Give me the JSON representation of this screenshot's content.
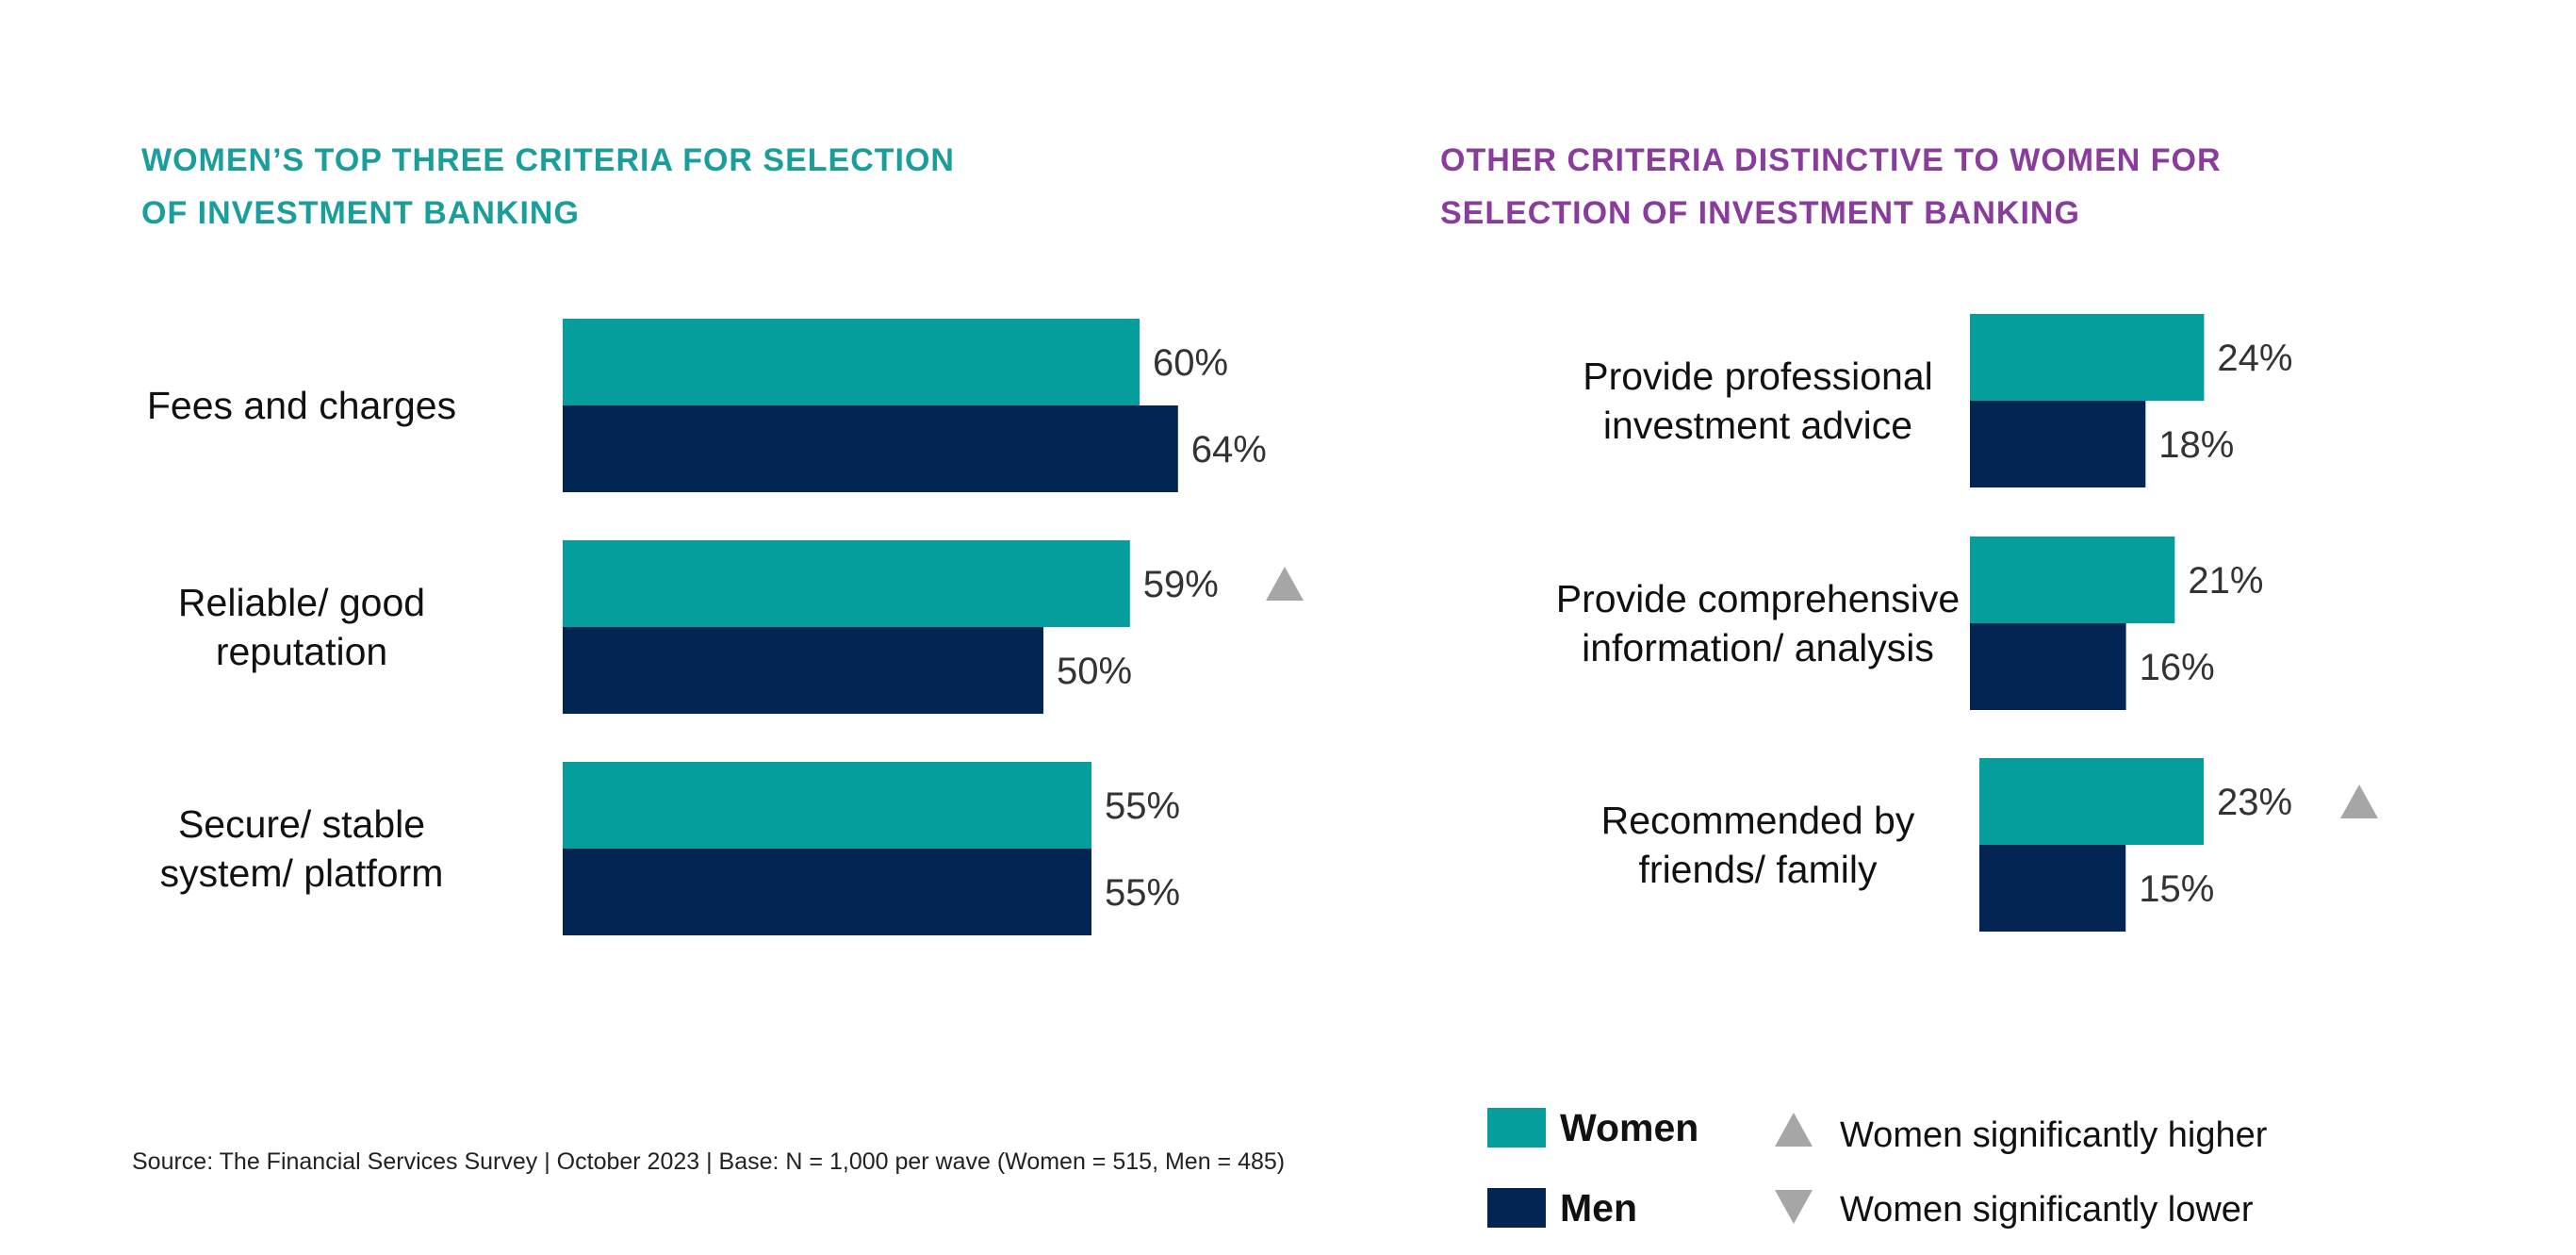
{
  "colors": {
    "women": "#069e9c",
    "men": "#032553",
    "title_left": "#1a9e9b",
    "title_right": "#8a3c9c",
    "marker": "#a6a6a6"
  },
  "chart_data": [
    {
      "type": "bar",
      "orientation": "horizontal",
      "title_lines": [
        "WOMEN’S TOP THREE CRITERIA FOR SELECTION",
        "OF INVESTMENT BANKING"
      ],
      "categories": [
        {
          "lines": [
            "Fees and charges"
          ]
        },
        {
          "lines": [
            "Reliable/ good",
            "reputation"
          ]
        },
        {
          "lines": [
            "Secure/ stable",
            "system/ platform"
          ]
        }
      ],
      "series": [
        {
          "name": "Women",
          "values": [
            60,
            59,
            55
          ],
          "labels": [
            "60%",
            "59%",
            "55%"
          ]
        },
        {
          "name": "Men",
          "values": [
            64,
            50,
            55
          ],
          "labels": [
            "64%",
            "50%",
            "55%"
          ]
        }
      ],
      "significance": [
        "",
        "higher",
        ""
      ],
      "unit": "%"
    },
    {
      "type": "bar",
      "orientation": "horizontal",
      "title_lines": [
        "OTHER CRITERIA DISTINCTIVE TO WOMEN FOR",
        "SELECTION OF INVESTMENT BANKING"
      ],
      "categories": [
        {
          "lines": [
            "Provide professional",
            "investment advice"
          ]
        },
        {
          "lines": [
            "Provide comprehensive",
            "information/ analysis"
          ]
        },
        {
          "lines": [
            "Recommended by",
            "friends/ family"
          ]
        }
      ],
      "series": [
        {
          "name": "Women",
          "values": [
            24,
            21,
            23
          ],
          "labels": [
            "24%",
            "21%",
            "23%"
          ]
        },
        {
          "name": "Men",
          "values": [
            18,
            16,
            15
          ],
          "labels": [
            "18%",
            "16%",
            "15%"
          ]
        }
      ],
      "significance": [
        "",
        "",
        "higher"
      ],
      "unit": "%"
    }
  ],
  "legend": {
    "women": "Women",
    "men": "Men",
    "higher": "Women significantly higher",
    "lower": "Women significantly lower"
  },
  "source": "Source: The Financial Services Survey | October 2023 | Base: N = 1,000 per wave (Women = 515, Men = 485)"
}
